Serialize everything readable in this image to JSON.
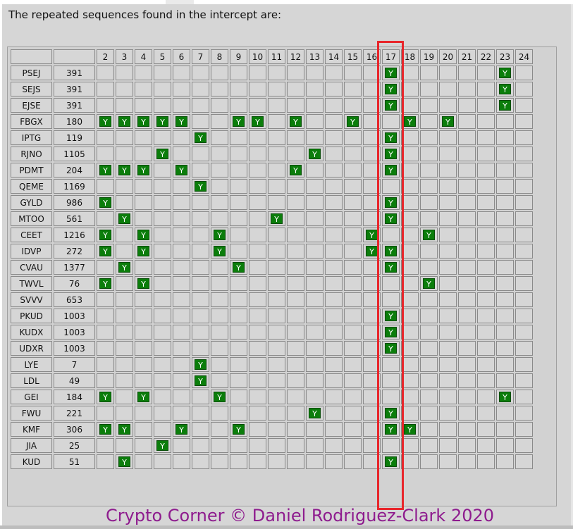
{
  "intro_text": "The repeated sequences found in the intercept are:",
  "column_headers": [
    "2",
    "3",
    "4",
    "5",
    "6",
    "7",
    "8",
    "9",
    "10",
    "11",
    "12",
    "13",
    "14",
    "15",
    "16",
    "17",
    "18",
    "19",
    "20",
    "21",
    "22",
    "23",
    "24"
  ],
  "highlight_column": "17",
  "mark_label": "Y",
  "rows": [
    {
      "name": "PSEJ",
      "count": "391",
      "marks": [
        "17",
        "23"
      ]
    },
    {
      "name": "SEJS",
      "count": "391",
      "marks": [
        "17",
        "23"
      ]
    },
    {
      "name": "EJSE",
      "count": "391",
      "marks": [
        "17",
        "23"
      ]
    },
    {
      "name": "FBGX",
      "count": "180",
      "marks": [
        "2",
        "3",
        "4",
        "5",
        "6",
        "9",
        "10",
        "12",
        "15",
        "18",
        "20"
      ]
    },
    {
      "name": "IPTG",
      "count": "119",
      "marks": [
        "7",
        "17"
      ]
    },
    {
      "name": "RJNO",
      "count": "1105",
      "marks": [
        "5",
        "13",
        "17"
      ]
    },
    {
      "name": "PDMT",
      "count": "204",
      "marks": [
        "2",
        "3",
        "4",
        "6",
        "12",
        "17"
      ]
    },
    {
      "name": "QEME",
      "count": "1169",
      "marks": [
        "7"
      ]
    },
    {
      "name": "GYLD",
      "count": "986",
      "marks": [
        "2",
        "17"
      ]
    },
    {
      "name": "MTOO",
      "count": "561",
      "marks": [
        "3",
        "11",
        "17"
      ]
    },
    {
      "name": "CEET",
      "count": "1216",
      "marks": [
        "2",
        "4",
        "8",
        "16",
        "19"
      ]
    },
    {
      "name": "IDVP",
      "count": "272",
      "marks": [
        "2",
        "4",
        "8",
        "16",
        "17"
      ]
    },
    {
      "name": "CVAU",
      "count": "1377",
      "marks": [
        "3",
        "9",
        "17"
      ]
    },
    {
      "name": "TWVL",
      "count": "76",
      "marks": [
        "2",
        "4",
        "19"
      ]
    },
    {
      "name": "SVVV",
      "count": "653",
      "marks": []
    },
    {
      "name": "PKUD",
      "count": "1003",
      "marks": [
        "17"
      ]
    },
    {
      "name": "KUDX",
      "count": "1003",
      "marks": [
        "17"
      ]
    },
    {
      "name": "UDXR",
      "count": "1003",
      "marks": [
        "17"
      ]
    },
    {
      "name": "LYE",
      "count": "7",
      "marks": [
        "7"
      ]
    },
    {
      "name": "LDL",
      "count": "49",
      "marks": [
        "7"
      ]
    },
    {
      "name": "GEI",
      "count": "184",
      "marks": [
        "2",
        "4",
        "8",
        "23"
      ]
    },
    {
      "name": "FWU",
      "count": "221",
      "marks": [
        "13",
        "17"
      ]
    },
    {
      "name": "KMF",
      "count": "306",
      "marks": [
        "2",
        "3",
        "6",
        "9",
        "17",
        "18"
      ]
    },
    {
      "name": "JIA",
      "count": "25",
      "marks": [
        "5"
      ]
    },
    {
      "name": "KUD",
      "count": "51",
      "marks": [
        "3",
        "17"
      ]
    }
  ],
  "credit": "Crypto Corner © Daniel Rodriguez-Clark 2020",
  "colors": {
    "mark_bg": "#0b7d0b",
    "highlight": "#e8262b",
    "credit": "#8e1c8e"
  }
}
